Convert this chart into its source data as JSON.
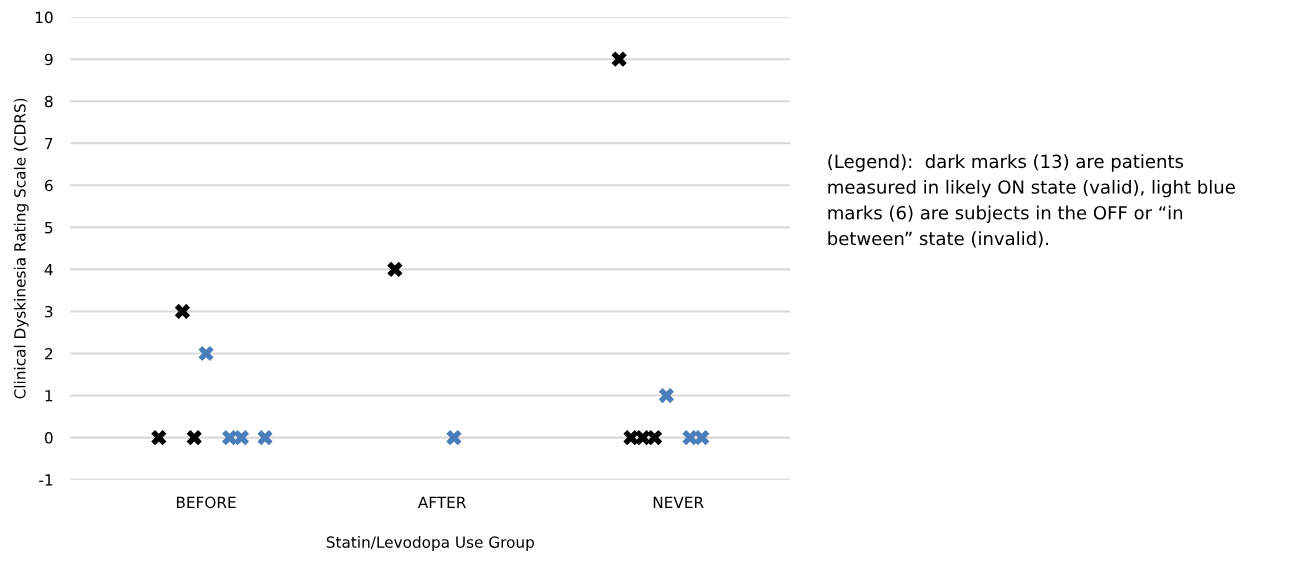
{
  "chart_data": {
    "type": "scatter",
    "xlabel": "Statin/Levodopa Use Group",
    "ylabel": "Clinical Dyskinesia Rating Scale (CDRS)",
    "categories": [
      null,
      null,
      null,
      null,
      null,
      null,
      null,
      null,
      null,
      null,
      null,
      "BEFORE",
      null,
      null,
      null,
      null,
      null,
      null,
      null,
      null,
      null,
      null,
      null,
      null,
      null,
      null,
      null,
      null,
      null,
      null,
      null,
      "AFTER",
      null,
      null,
      null,
      null,
      null,
      null,
      null,
      null,
      null,
      null,
      null,
      null,
      null,
      null,
      null,
      null,
      null,
      null,
      null,
      "NEVER",
      null,
      null,
      null,
      null,
      null,
      null,
      null,
      null,
      null
    ],
    "ylim": [
      -1,
      10
    ],
    "yticks": [
      -1,
      0,
      1,
      2,
      3,
      4,
      5,
      6,
      7,
      8,
      9,
      10
    ],
    "grid": "y",
    "marker": "cross",
    "series": [
      {
        "color": "#000000",
        "values": [
          null,
          null,
          null,
          null,
          null,
          null,
          null,
          0,
          null,
          3,
          0,
          null,
          null,
          null,
          null,
          null,
          null,
          null,
          null,
          null,
          null,
          null,
          null,
          null,
          null,
          null,
          null,
          4,
          null,
          null,
          null,
          null,
          null,
          null,
          null,
          null,
          null,
          null,
          null,
          null,
          null,
          null,
          null,
          null,
          null,
          null,
          9,
          0,
          0,
          0,
          null,
          null,
          null,
          null,
          null,
          null,
          null,
          null,
          null,
          null,
          null
        ]
      },
      {
        "color": "#4a7ebb",
        "values": [
          null,
          null,
          null,
          null,
          null,
          null,
          null,
          null,
          null,
          null,
          null,
          2,
          null,
          0,
          0,
          null,
          0,
          null,
          null,
          null,
          null,
          null,
          null,
          null,
          null,
          null,
          null,
          null,
          null,
          null,
          null,
          null,
          0,
          null,
          null,
          null,
          null,
          null,
          null,
          null,
          null,
          null,
          null,
          null,
          null,
          null,
          null,
          null,
          null,
          null,
          1,
          null,
          0,
          0,
          null,
          null,
          null,
          null,
          null,
          null,
          null
        ]
      }
    ],
    "annotations": [
      "(Legend):  dark marks (13) are patients measured in likely ON state (valid), light blue marks (6) are subjects in the OFF or “in between” state (invalid)."
    ]
  }
}
